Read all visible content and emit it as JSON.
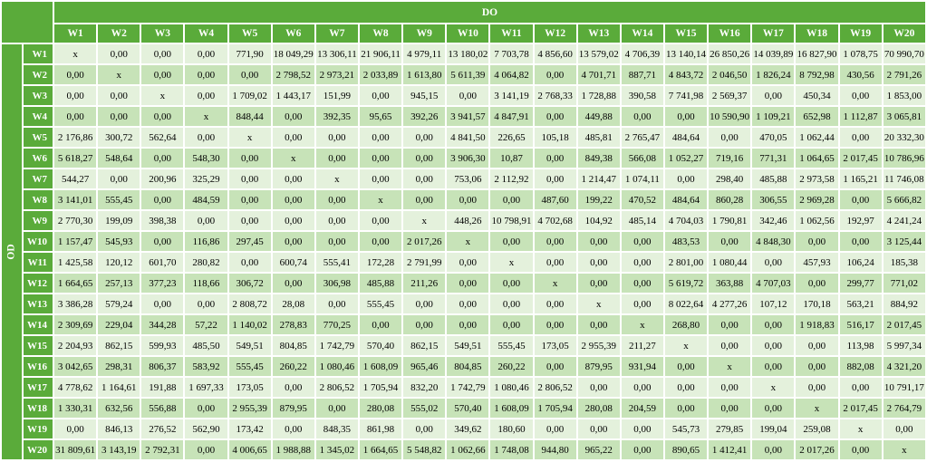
{
  "table": {
    "col_group_label": "DO",
    "row_group_label": "OD",
    "columns": [
      "W1",
      "W2",
      "W3",
      "W4",
      "W5",
      "W6",
      "W7",
      "W8",
      "W9",
      "W10",
      "W11",
      "W12",
      "W13",
      "W14",
      "W15",
      "W16",
      "W17",
      "W18",
      "W19",
      "W20"
    ],
    "rows": [
      {
        "label": "W1",
        "cells": [
          "x",
          "0,00",
          "0,00",
          "0,00",
          "771,90",
          "18 049,29",
          "13 306,11",
          "21 906,11",
          "4 979,11",
          "13 180,02",
          "7 703,78",
          "4 856,60",
          "13 579,02",
          "4 706,39",
          "13 140,14",
          "26 850,26",
          "14 039,89",
          "16 827,90",
          "1 078,75",
          "70 990,70"
        ]
      },
      {
        "label": "W2",
        "cells": [
          "0,00",
          "x",
          "0,00",
          "0,00",
          "0,00",
          "2 798,52",
          "2 973,21",
          "2 033,89",
          "1 613,80",
          "5 611,39",
          "4 064,82",
          "0,00",
          "4 701,71",
          "887,71",
          "4 843,72",
          "2 046,50",
          "1 826,24",
          "8 792,98",
          "430,56",
          "2 791,26"
        ]
      },
      {
        "label": "W3",
        "cells": [
          "0,00",
          "0,00",
          "x",
          "0,00",
          "1 709,02",
          "1 443,17",
          "151,99",
          "0,00",
          "945,15",
          "0,00",
          "3 141,19",
          "2 768,33",
          "1 728,88",
          "390,58",
          "7 741,98",
          "2 569,37",
          "0,00",
          "450,34",
          "0,00",
          "1 853,00"
        ]
      },
      {
        "label": "W4",
        "cells": [
          "0,00",
          "0,00",
          "0,00",
          "x",
          "848,44",
          "0,00",
          "392,35",
          "95,65",
          "392,26",
          "3 941,57",
          "4 847,91",
          "0,00",
          "449,88",
          "0,00",
          "0,00",
          "10 590,90",
          "1 109,21",
          "652,98",
          "1 112,87",
          "3 065,81"
        ]
      },
      {
        "label": "W5",
        "cells": [
          "2 176,86",
          "300,72",
          "562,64",
          "0,00",
          "x",
          "0,00",
          "0,00",
          "0,00",
          "0,00",
          "4 841,50",
          "226,65",
          "105,18",
          "485,81",
          "2 765,47",
          "484,64",
          "0,00",
          "470,05",
          "1 062,44",
          "0,00",
          "20 332,30"
        ]
      },
      {
        "label": "W6",
        "cells": [
          "5 618,27",
          "548,64",
          "0,00",
          "548,30",
          "0,00",
          "x",
          "0,00",
          "0,00",
          "0,00",
          "3 906,30",
          "10,87",
          "0,00",
          "849,38",
          "566,08",
          "1 052,27",
          "719,16",
          "771,31",
          "1 064,65",
          "2 017,45",
          "10 786,96"
        ]
      },
      {
        "label": "W7",
        "cells": [
          "544,27",
          "0,00",
          "200,96",
          "325,29",
          "0,00",
          "0,00",
          "x",
          "0,00",
          "0,00",
          "753,06",
          "2 112,92",
          "0,00",
          "1 214,47",
          "1 074,11",
          "0,00",
          "298,40",
          "485,88",
          "2 973,58",
          "1 165,21",
          "11 746,08"
        ]
      },
      {
        "label": "W8",
        "cells": [
          "3 141,01",
          "555,45",
          "0,00",
          "484,59",
          "0,00",
          "0,00",
          "0,00",
          "x",
          "0,00",
          "0,00",
          "0,00",
          "487,60",
          "199,22",
          "470,52",
          "484,64",
          "860,28",
          "306,55",
          "2 969,28",
          "0,00",
          "5 666,82"
        ]
      },
      {
        "label": "W9",
        "cells": [
          "2 770,30",
          "199,09",
          "398,38",
          "0,00",
          "0,00",
          "0,00",
          "0,00",
          "0,00",
          "x",
          "448,26",
          "10 798,91",
          "4 702,68",
          "104,92",
          "485,14",
          "4 704,03",
          "1 790,81",
          "342,46",
          "1 062,56",
          "192,97",
          "4 241,24"
        ]
      },
      {
        "label": "W10",
        "cells": [
          "1 157,47",
          "545,93",
          "0,00",
          "116,86",
          "297,45",
          "0,00",
          "0,00",
          "0,00",
          "2 017,26",
          "x",
          "0,00",
          "0,00",
          "0,00",
          "0,00",
          "483,53",
          "0,00",
          "4 848,30",
          "0,00",
          "0,00",
          "3 125,44"
        ]
      },
      {
        "label": "W11",
        "cells": [
          "1 425,58",
          "120,12",
          "601,70",
          "280,82",
          "0,00",
          "600,74",
          "555,41",
          "172,28",
          "2 791,99",
          "0,00",
          "x",
          "0,00",
          "0,00",
          "0,00",
          "2 801,00",
          "1 080,44",
          "0,00",
          "457,93",
          "106,24",
          "185,38"
        ]
      },
      {
        "label": "W12",
        "cells": [
          "1 664,65",
          "257,13",
          "377,23",
          "118,66",
          "306,72",
          "0,00",
          "306,98",
          "485,88",
          "211,26",
          "0,00",
          "0,00",
          "x",
          "0,00",
          "0,00",
          "5 619,72",
          "363,88",
          "4 707,03",
          "0,00",
          "299,77",
          "771,02"
        ]
      },
      {
        "label": "W13",
        "cells": [
          "3 386,28",
          "579,24",
          "0,00",
          "0,00",
          "2 808,72",
          "28,08",
          "0,00",
          "555,45",
          "0,00",
          "0,00",
          "0,00",
          "0,00",
          "x",
          "0,00",
          "8 022,64",
          "4 277,26",
          "107,12",
          "170,18",
          "563,21",
          "884,92"
        ]
      },
      {
        "label": "W14",
        "cells": [
          "2 309,69",
          "229,04",
          "344,28",
          "57,22",
          "1 140,02",
          "278,83",
          "770,25",
          "0,00",
          "0,00",
          "0,00",
          "0,00",
          "0,00",
          "0,00",
          "x",
          "268,80",
          "0,00",
          "0,00",
          "1 918,83",
          "516,17",
          "2 017,45"
        ]
      },
      {
        "label": "W15",
        "cells": [
          "2 204,93",
          "862,15",
          "599,93",
          "485,50",
          "549,51",
          "804,85",
          "1 742,79",
          "570,40",
          "862,15",
          "549,51",
          "555,45",
          "173,05",
          "2 955,39",
          "211,27",
          "x",
          "0,00",
          "0,00",
          "0,00",
          "113,98",
          "5 997,34"
        ]
      },
      {
        "label": "W16",
        "cells": [
          "3 042,65",
          "298,31",
          "806,37",
          "583,92",
          "555,45",
          "260,22",
          "1 080,46",
          "1 608,09",
          "965,46",
          "804,85",
          "260,22",
          "0,00",
          "879,95",
          "931,94",
          "0,00",
          "x",
          "0,00",
          "0,00",
          "882,08",
          "4 321,20"
        ]
      },
      {
        "label": "W17",
        "cells": [
          "4 778,62",
          "1 164,61",
          "191,88",
          "1 697,33",
          "173,05",
          "0,00",
          "2 806,52",
          "1 705,94",
          "832,20",
          "1 742,79",
          "1 080,46",
          "2 806,52",
          "0,00",
          "0,00",
          "0,00",
          "0,00",
          "x",
          "0,00",
          "0,00",
          "10 791,17"
        ]
      },
      {
        "label": "W18",
        "cells": [
          "1 330,31",
          "632,56",
          "556,88",
          "0,00",
          "2 955,39",
          "879,95",
          "0,00",
          "280,08",
          "555,02",
          "570,40",
          "1 608,09",
          "1 705,94",
          "280,08",
          "204,59",
          "0,00",
          "0,00",
          "0,00",
          "x",
          "2 017,45",
          "2 764,79"
        ]
      },
      {
        "label": "W19",
        "cells": [
          "0,00",
          "846,13",
          "276,52",
          "562,90",
          "173,42",
          "0,00",
          "848,35",
          "861,98",
          "0,00",
          "349,62",
          "180,60",
          "0,00",
          "0,00",
          "0,00",
          "545,73",
          "279,85",
          "199,04",
          "259,08",
          "x",
          "0,00"
        ]
      },
      {
        "label": "W20",
        "cells": [
          "31 809,61",
          "3 143,19",
          "2 792,31",
          "0,00",
          "4 006,65",
          "1 988,88",
          "1 345,02",
          "1 664,65",
          "5 548,82",
          "1 062,66",
          "1 748,08",
          "944,80",
          "965,22",
          "0,00",
          "890,65",
          "1 412,41",
          "0,00",
          "2 017,26",
          "0,00",
          "x"
        ]
      }
    ]
  },
  "colors": {
    "header_green": "#5aab3a",
    "row_light": "#e4f1dc",
    "row_dark": "#c7e3b8"
  }
}
